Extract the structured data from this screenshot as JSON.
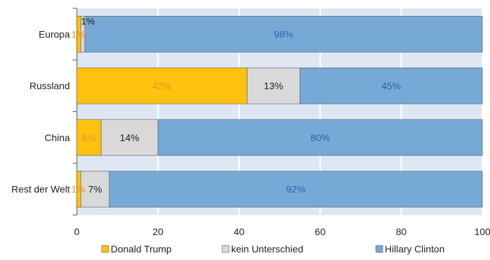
{
  "chart_data": {
    "type": "bar",
    "orientation": "horizontal",
    "stacked": true,
    "categories": [
      "Europa",
      "Russland",
      "China",
      "Rest der Welt"
    ],
    "series": [
      {
        "name": "Donald Trump",
        "values": [
          1,
          42,
          6,
          1
        ],
        "labels": [
          "1%",
          "42%",
          "6%",
          "1%"
        ]
      },
      {
        "name": "kein Unterschied",
        "values": [
          1,
          13,
          14,
          7
        ],
        "labels": [
          "1%",
          "13%",
          "14%",
          "7%"
        ]
      },
      {
        "name": "Hillary Clinton",
        "values": [
          98,
          45,
          80,
          92
        ],
        "labels": [
          "98%",
          "45%",
          "80%",
          "92%"
        ]
      }
    ],
    "xlim": [
      0,
      100
    ],
    "xticks": [
      "0",
      "20",
      "40",
      "60",
      "80",
      "100"
    ],
    "grid": true,
    "legend_position": "bottom",
    "colors": {
      "Donald Trump": "#ffc20e",
      "kein Unterschied": "#d9d9d9",
      "Hillary Clinton": "#77a9d6",
      "plot_background": "#dfe6f3",
      "trump_label": "#f28c28",
      "clinton_label": "#2f5fa8"
    }
  }
}
